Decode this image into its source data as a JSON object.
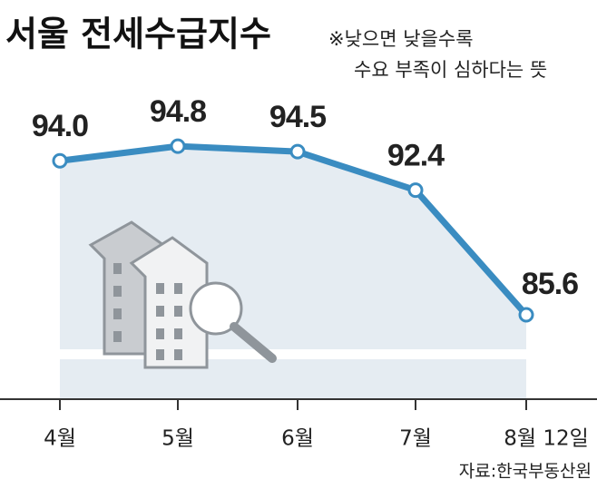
{
  "chart_data": {
    "type": "line",
    "title": "서울 전세수급지수",
    "annotations": [
      "※낮으면 낮을수록",
      "수요 부족이 심하다는 뜻"
    ],
    "source": "자료:한국부동산원",
    "categories": [
      "4월",
      "5월",
      "6월",
      "7월",
      "8월 12일"
    ],
    "series": [
      {
        "name": "서울 전세수급지수",
        "color": "#3a8cc1",
        "values": [
          94.0,
          94.8,
          94.5,
          92.4,
          85.6
        ],
        "value_labels": [
          "94.0",
          "94.8",
          "94.5",
          "92.4",
          "85.6"
        ]
      }
    ],
    "ylim": [
      81,
      100
    ]
  }
}
